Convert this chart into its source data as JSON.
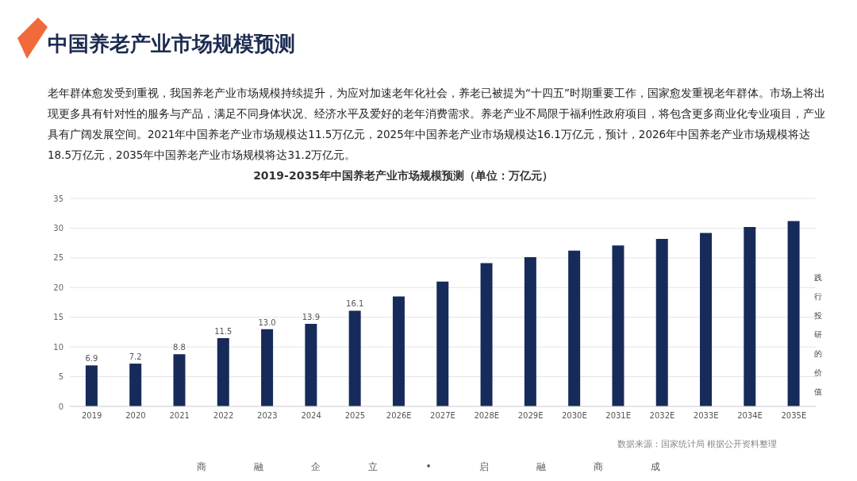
{
  "chart_data": {
    "type": "bar",
    "title": "中国养老产业市场规模预测",
    "subtitle": "2019-2035年中国养老产业市场规模预测（单位：万亿元）",
    "annotations": [
      "老年群体愈发受到重视，我国养老产业市场规模持续提升，为应对加速老年化社会，养老已被提为“十四五”时期重要工作，国家愈发重视老年群体。市场上将出现更多具有针对性的服务与产品，满足不同身体状况、经济水平及爱好的老年消费需求。养老产业不局限于福利性政府项目，将包含更多商业化专业项目，产业具有广阔发展空间。2021年中国养老产业市场规模达11.5万亿元，2025年中国养老产业市场规模达16.1万亿元，预计，2026年中国养老产业市场规模将达18.5万亿元，2035年中国养老产业市场规模将达31.2万亿元。",
      "数据来源：国家统计局 根据公开资料整理",
      "践行投研的价值",
      "商　　　　　融　　　　　企　　　　　立　　　　　•　　　　　启　　　　　融　　　　　商　　　　　成"
    ],
    "categories": [
      "2019",
      "2020",
      "2021",
      "2022",
      "2023",
      "2024",
      "2025",
      "2026E",
      "2027E",
      "2028E",
      "2029E",
      "2030E",
      "2031E",
      "2032E",
      "2033E",
      "2034E",
      "2035E"
    ],
    "values": [
      6.9,
      7.2,
      8.8,
      11.5,
      13.0,
      13.9,
      16.1,
      18.5,
      21.0,
      24.1,
      25.1,
      26.2,
      27.1,
      28.2,
      29.2,
      30.2,
      31.2
    ],
    "value_labels": [
      "6.9",
      "7.2",
      "8.8",
      "11.5",
      "13.0",
      "13.9",
      "16.1",
      null,
      null,
      null,
      null,
      null,
      null,
      null,
      null,
      null,
      null
    ],
    "color": "#172b5a",
    "ylim": [
      0,
      35
    ],
    "yticks": [
      0,
      5,
      10,
      15,
      20,
      25,
      30,
      35
    ],
    "grid": "y",
    "legend": false
  }
}
